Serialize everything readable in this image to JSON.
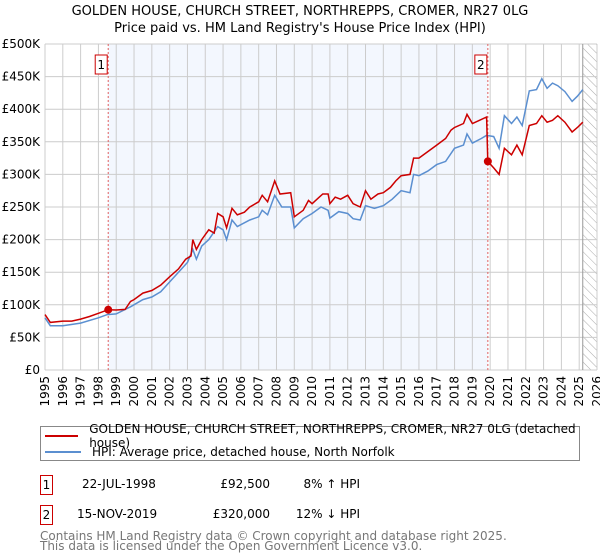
{
  "title_line1": "GOLDEN HOUSE, CHURCH STREET, NORTHREPPS, CROMER, NR27 0LG",
  "title_line2": "Price paid vs. HM Land Registry's House Price Index (HPI)",
  "chart_data": {
    "type": "line",
    "title": "GOLDEN HOUSE, CHURCH STREET, NORTHREPPS, CROMER, NR27 0LG — Price paid vs. HM Land Registry's House Price Index (HPI)",
    "xlim": [
      1995,
      2026
    ],
    "ylim": [
      0,
      500000
    ],
    "x_ticks": [
      "1995",
      "1996",
      "1997",
      "1998",
      "1999",
      "2000",
      "2001",
      "2002",
      "2003",
      "2004",
      "2005",
      "2006",
      "2007",
      "2008",
      "2009",
      "2010",
      "2011",
      "2012",
      "2013",
      "2014",
      "2015",
      "2016",
      "2017",
      "2018",
      "2019",
      "2020",
      "2021",
      "2022",
      "2023",
      "2024",
      "2025",
      "2026"
    ],
    "y_ticks": [
      {
        "v": 0,
        "label": "£0"
      },
      {
        "v": 50000,
        "label": "£50K"
      },
      {
        "v": 100000,
        "label": "£100K"
      },
      {
        "v": 150000,
        "label": "£150K"
      },
      {
        "v": 200000,
        "label": "£200K"
      },
      {
        "v": 250000,
        "label": "£250K"
      },
      {
        "v": 300000,
        "label": "£300K"
      },
      {
        "v": 350000,
        "label": "£350K"
      },
      {
        "v": 400000,
        "label": "£400K"
      },
      {
        "v": 450000,
        "label": "£450K"
      },
      {
        "v": 500000,
        "label": "£500K"
      }
    ],
    "grid": true,
    "shaded_range": [
      1998.55,
      2019.87
    ],
    "hatched_from": 2025.2,
    "series": [
      {
        "name": "GOLDEN HOUSE, CHURCH STREET, NORTHREPPS, CROMER, NR27 0LG (detached house)",
        "color": "#cc0000",
        "x": [
          1995,
          1995.3,
          1996,
          1996.5,
          1997,
          1997.5,
          1998,
          1998.55,
          1999,
          1999.5,
          1999.8,
          2000,
          2000.5,
          2001,
          2001.5,
          2002,
          2002.5,
          2002.9,
          2003.2,
          2003.3,
          2003.5,
          2003.8,
          2004.2,
          2004.5,
          2004.7,
          2005,
          2005.2,
          2005.5,
          2005.8,
          2006.2,
          2006.5,
          2007,
          2007.2,
          2007.5,
          2007.9,
          2008.2,
          2008.8,
          2009,
          2009.5,
          2009.8,
          2010,
          2010.4,
          2010.6,
          2010.9,
          2011,
          2011.3,
          2011.6,
          2012,
          2012.3,
          2012.7,
          2013,
          2013.3,
          2013.7,
          2014,
          2014.4,
          2014.7,
          2015,
          2015.5,
          2015.7,
          2016,
          2016.5,
          2017,
          2017.5,
          2017.8,
          2018,
          2018.5,
          2018.7,
          2019,
          2019.4,
          2019.8,
          2019.87,
          2020.2,
          2020.5,
          2020.8,
          2021.2,
          2021.5,
          2021.8,
          2022.2,
          2022.6,
          2022.9,
          2023.2,
          2023.5,
          2023.8,
          2024.2,
          2024.6,
          2024.9,
          2025.2
        ],
        "y": [
          85,
          73,
          75,
          75,
          78,
          82,
          87,
          92.5,
          92,
          93,
          105,
          108,
          118,
          122,
          130,
          143,
          155,
          170,
          175,
          200,
          185,
          200,
          215,
          210,
          240,
          235,
          218,
          248,
          238,
          242,
          250,
          258,
          268,
          258,
          290,
          270,
          272,
          235,
          245,
          260,
          255,
          265,
          270,
          270,
          255,
          265,
          262,
          268,
          255,
          250,
          275,
          262,
          270,
          272,
          280,
          290,
          298,
          300,
          325,
          325,
          335,
          345,
          355,
          368,
          372,
          378,
          392,
          378,
          383,
          388,
          320,
          310,
          300,
          340,
          330,
          345,
          330,
          375,
          378,
          390,
          380,
          383,
          390,
          380,
          365,
          372,
          380
        ]
      },
      {
        "name": "HPI: Average price, detached house, North Norfolk",
        "color": "#5b8fd0",
        "x": [
          1995,
          1995.3,
          1996,
          1997,
          1998,
          1998.5,
          1999,
          1999.8,
          2000.5,
          2001,
          2001.5,
          2002,
          2002.5,
          2003,
          2003.3,
          2003.5,
          2003.8,
          2004.2,
          2004.7,
          2005,
          2005.2,
          2005.5,
          2005.8,
          2006.5,
          2007,
          2007.2,
          2007.5,
          2007.9,
          2008.3,
          2008.8,
          2009,
          2009.5,
          2010,
          2010.5,
          2010.9,
          2011,
          2011.5,
          2012,
          2012.3,
          2012.7,
          2013,
          2013.5,
          2014,
          2014.5,
          2015,
          2015.5,
          2015.7,
          2016,
          2016.5,
          2017,
          2017.5,
          2018,
          2018.5,
          2018.7,
          2019,
          2019.5,
          2019.8,
          2020.2,
          2020.5,
          2020.8,
          2021.2,
          2021.5,
          2021.8,
          2022.2,
          2022.6,
          2022.9,
          2023.2,
          2023.5,
          2023.8,
          2024.2,
          2024.6,
          2024.9,
          2025.2
        ],
        "y": [
          80,
          68,
          68,
          72,
          80,
          85,
          86,
          97,
          108,
          112,
          120,
          135,
          150,
          165,
          185,
          170,
          190,
          200,
          220,
          215,
          200,
          230,
          220,
          230,
          235,
          245,
          238,
          268,
          250,
          250,
          218,
          232,
          240,
          250,
          245,
          233,
          243,
          240,
          232,
          230,
          252,
          248,
          252,
          262,
          275,
          272,
          300,
          298,
          305,
          315,
          320,
          340,
          345,
          362,
          348,
          355,
          360,
          358,
          340,
          390,
          378,
          388,
          375,
          428,
          430,
          447,
          432,
          440,
          436,
          427,
          412,
          420,
          430
        ]
      }
    ],
    "y_unit": "thousand GBP",
    "markers": [
      {
        "label": "1",
        "x": 1998.55,
        "y": 92.5
      },
      {
        "label": "2",
        "x": 2019.87,
        "y": 320
      }
    ]
  },
  "legend": {
    "property_label": "GOLDEN HOUSE, CHURCH STREET, NORTHREPPS, CROMER, NR27 0LG (detached house)",
    "hpi_label": "HPI: Average price, detached house, North Norfolk"
  },
  "transactions": [
    {
      "num": "1",
      "date": "22-JUL-1998",
      "price": "£92,500",
      "hpi": "8% ↑ HPI"
    },
    {
      "num": "2",
      "date": "15-NOV-2019",
      "price": "£320,000",
      "hpi": "12% ↓ HPI"
    }
  ],
  "footer": {
    "line1": "Contains HM Land Registry data © Crown copyright and database right 2025.",
    "line2": "This data is licensed under the Open Government Licence v3.0."
  }
}
